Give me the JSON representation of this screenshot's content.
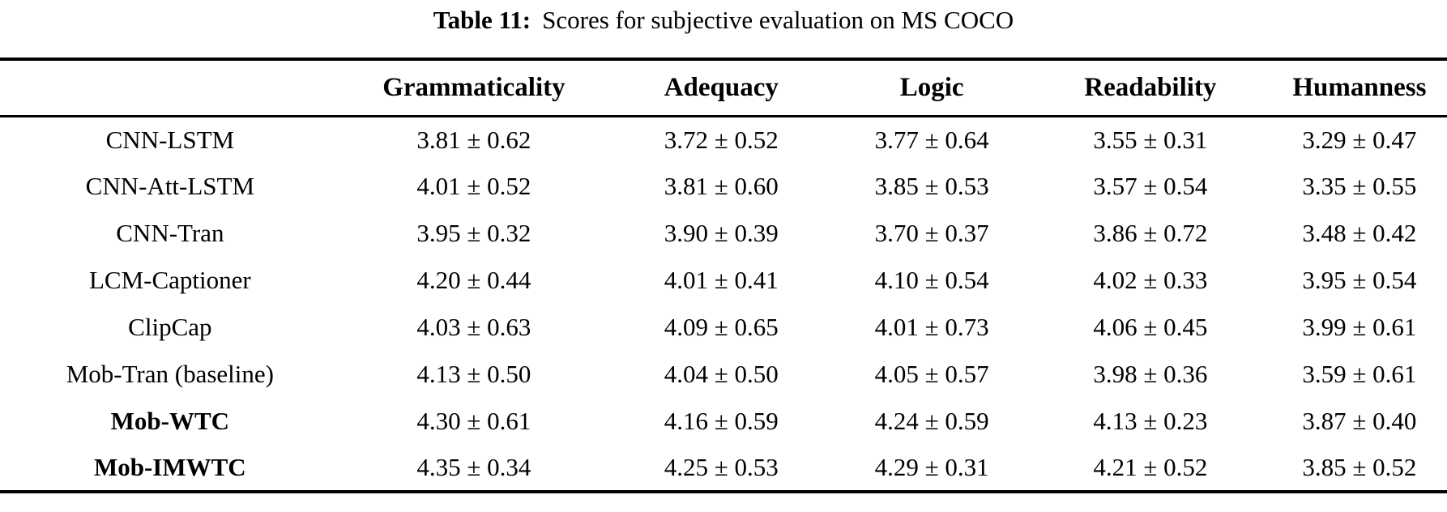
{
  "caption": {
    "label": "Table 11:",
    "text": "Scores for subjective evaluation on MS COCO"
  },
  "table": {
    "header": [
      "",
      "Grammaticality",
      "Adequacy",
      "Logic",
      "Readability",
      "Humanness"
    ],
    "rows": [
      {
        "model": "CNN-LSTM",
        "bold": false,
        "values": [
          "3.81 ± 0.62",
          "3.72 ± 0.52",
          "3.77 ± 0.64",
          "3.55 ± 0.31",
          "3.29 ± 0.47"
        ]
      },
      {
        "model": "CNN-Att-LSTM",
        "bold": false,
        "values": [
          "4.01 ± 0.52",
          "3.81 ± 0.60",
          "3.85 ± 0.53",
          "3.57 ± 0.54",
          "3.35 ± 0.55"
        ]
      },
      {
        "model": "CNN-Tran",
        "bold": false,
        "values": [
          "3.95 ± 0.32",
          "3.90 ± 0.39",
          "3.70 ± 0.37",
          "3.86 ± 0.72",
          "3.48 ± 0.42"
        ]
      },
      {
        "model": "LCM-Captioner",
        "bold": false,
        "values": [
          "4.20 ± 0.44",
          "4.01 ± 0.41",
          "4.10 ± 0.54",
          "4.02 ± 0.33",
          "3.95 ± 0.54"
        ]
      },
      {
        "model": "ClipCap",
        "bold": false,
        "values": [
          "4.03 ± 0.63",
          "4.09 ± 0.65",
          "4.01 ± 0.73",
          "4.06 ± 0.45",
          "3.99 ± 0.61"
        ]
      },
      {
        "model": "Mob-Tran (baseline)",
        "bold": false,
        "values": [
          "4.13 ± 0.50",
          "4.04 ± 0.50",
          "4.05 ± 0.57",
          "3.98 ± 0.36",
          "3.59 ± 0.61"
        ]
      },
      {
        "model": "Mob-WTC",
        "bold": true,
        "values": [
          "4.30 ± 0.61",
          "4.16 ± 0.59",
          "4.24 ± 0.59",
          "4.13 ± 0.23",
          "3.87 ± 0.40"
        ]
      },
      {
        "model": "Mob-IMWTC",
        "bold": true,
        "values": [
          "4.35 ± 0.34",
          "4.25 ± 0.53",
          "4.29 ± 0.31",
          "4.21 ± 0.52",
          "3.85 ± 0.52"
        ]
      }
    ]
  },
  "colors": {
    "text": "#000000",
    "background": "#ffffff",
    "rule": "#000000"
  }
}
